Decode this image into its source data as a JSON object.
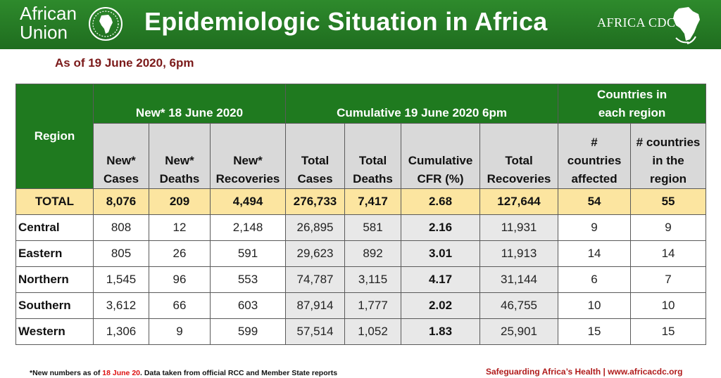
{
  "header": {
    "au_logo_text_line1": "African",
    "au_logo_text_line2": "Union",
    "title": "Epidemiologic Situation in Africa",
    "cdc_logo_text": "AFRICA CDC"
  },
  "subtitle": "As of 19 June 2020, 6pm",
  "table": {
    "region_header": "Region",
    "group_headers": {
      "new": "New* 18 June 2020",
      "cumulative": "Cumulative 19 June 2020 6pm",
      "countries": "Countries in each region"
    },
    "column_headers": {
      "new_cases": "New* Cases",
      "new_deaths": "New* Deaths",
      "new_recoveries": "New* Recoveries",
      "total_cases": "Total Cases",
      "total_deaths": "Total Deaths",
      "cfr": "Cumulative CFR (%)",
      "total_recoveries": "Total Recoveries",
      "countries_affected": "# countries affected",
      "countries_region": "# countries in the region"
    },
    "total_row": {
      "region": "TOTAL",
      "new_cases": "8,076",
      "new_deaths": "209",
      "new_recoveries": "4,494",
      "total_cases": "276,733",
      "total_deaths": "7,417",
      "cfr": "2.68",
      "total_recoveries": "127,644",
      "countries_affected": "54",
      "countries_region": "55"
    },
    "rows": [
      {
        "region": "Central",
        "new_cases": "808",
        "new_deaths": "12",
        "new_recoveries": "2,148",
        "total_cases": "26,895",
        "total_deaths": "581",
        "cfr": "2.16",
        "total_recoveries": "11,931",
        "countries_affected": "9",
        "countries_region": "9"
      },
      {
        "region": "Eastern",
        "new_cases": "805",
        "new_deaths": "26",
        "new_recoveries": "591",
        "total_cases": "29,623",
        "total_deaths": "892",
        "cfr": "3.01",
        "total_recoveries": "11,913",
        "countries_affected": "14",
        "countries_region": "14"
      },
      {
        "region": "Northern",
        "new_cases": "1,545",
        "new_deaths": "96",
        "new_recoveries": "553",
        "total_cases": "74,787",
        "total_deaths": "3,115",
        "cfr": "4.17",
        "total_recoveries": "31,144",
        "countries_affected": "6",
        "countries_region": "7"
      },
      {
        "region": "Southern",
        "new_cases": "3,612",
        "new_deaths": "66",
        "new_recoveries": "603",
        "total_cases": "87,914",
        "total_deaths": "1,777",
        "cfr": "2.02",
        "total_recoveries": "46,755",
        "countries_affected": "10",
        "countries_region": "10"
      },
      {
        "region": "Western",
        "new_cases": "1,306",
        "new_deaths": "9",
        "new_recoveries": "599",
        "total_cases": "57,514",
        "total_deaths": "1,052",
        "cfr": "1.83",
        "total_recoveries": "25,901",
        "countries_affected": "15",
        "countries_region": "15"
      }
    ]
  },
  "footnote": {
    "prefix": "*New numbers as of",
    "date": "18 June 20",
    "suffix": ". Data taken from official RCC and Member State reports"
  },
  "footer_right": "Safeguarding Africa’s Health | www.africacdc.org",
  "colors": {
    "banner_green": "#1f6d1f",
    "header_green": "#1f7a1f",
    "total_row": "#fce5a0",
    "subtitle": "#7b1a1a",
    "footer_red": "#b01c1c"
  }
}
